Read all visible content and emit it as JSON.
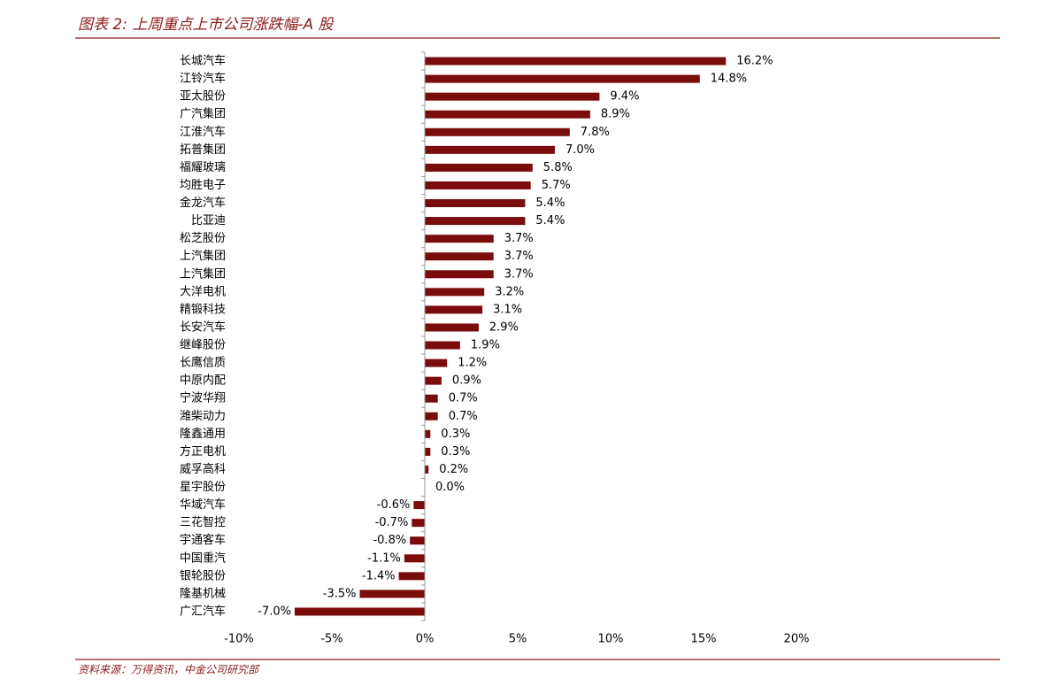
{
  "chart_data": {
    "type": "bar",
    "orientation": "horizontal",
    "title": "图表 2: 上周重点上市公司涨跌幅-A 股",
    "source": "资料来源：万得资讯，中金公司研究部",
    "color": "#7b0c0c",
    "categories": [
      "长城汽车",
      "江铃汽车",
      "亚太股份",
      "广汽集团",
      "江淮汽车",
      "拓普集团",
      "福耀玻璃",
      "均胜电子",
      "金龙汽车",
      "比亚迪",
      "松芝股份",
      "上汽集团",
      "上汽集团",
      "大洋电机",
      "精锻科技",
      "长安汽车",
      "继峰股份",
      "长鹰信质",
      "中原内配",
      "宁波华翔",
      "潍柴动力",
      "隆鑫通用",
      "方正电机",
      "威孚高科",
      "星宇股份",
      "华域汽车",
      "三花智控",
      "宇通客车",
      "中国重汽",
      "银轮股份",
      "隆基机械",
      "广汇汽车"
    ],
    "values": [
      16.2,
      14.8,
      9.4,
      8.9,
      7.8,
      7.0,
      5.8,
      5.7,
      5.4,
      5.4,
      3.7,
      3.7,
      3.7,
      3.2,
      3.1,
      2.9,
      1.9,
      1.2,
      0.9,
      0.7,
      0.7,
      0.3,
      0.3,
      0.2,
      0.0,
      -0.6,
      -0.7,
      -0.8,
      -1.1,
      -1.4,
      -3.5,
      -7.0
    ],
    "value_labels": [
      "16.2%",
      "14.8%",
      "9.4%",
      "8.9%",
      "7.8%",
      "7.0%",
      "5.8%",
      "5.7%",
      "5.4%",
      "5.4%",
      "3.7%",
      "3.7%",
      "3.7%",
      "3.2%",
      "3.1%",
      "2.9%",
      "1.9%",
      "1.2%",
      "0.9%",
      "0.7%",
      "0.7%",
      "0.3%",
      "0.3%",
      "0.2%",
      "0.0%",
      "-0.6%",
      "-0.7%",
      "-0.8%",
      "-1.1%",
      "-1.4%",
      "-3.5%",
      "-7.0%"
    ],
    "xlim": [
      -10,
      20
    ],
    "xticks": [
      {
        "value": -10,
        "label": "-10%"
      },
      {
        "value": -5,
        "label": "-5%"
      },
      {
        "value": 0,
        "label": "0%"
      },
      {
        "value": 5,
        "label": "5%"
      },
      {
        "value": 10,
        "label": "10%"
      },
      {
        "value": 15,
        "label": "15%"
      },
      {
        "value": 20,
        "label": "20%"
      }
    ]
  }
}
